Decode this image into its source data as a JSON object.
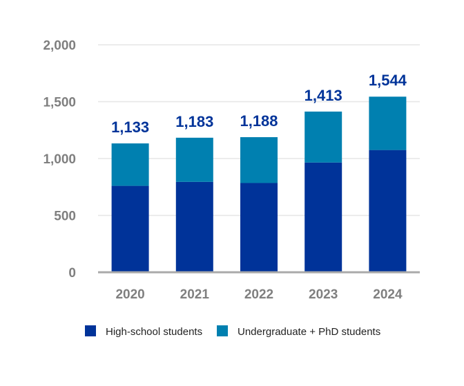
{
  "chart_data": {
    "type": "bar",
    "stacked": true,
    "categories": [
      "2020",
      "2021",
      "2022",
      "2023",
      "2024"
    ],
    "series": [
      {
        "name": "High-school students",
        "values": [
          760,
          795,
          785,
          965,
          1075
        ],
        "color": "#003399"
      },
      {
        "name": "Undergraduate + PhD students",
        "values": [
          373,
          388,
          403,
          448,
          469
        ],
        "color": "#0080b0"
      }
    ],
    "totals": [
      "1,133",
      "1,183",
      "1,188",
      "1,413",
      "1,544"
    ],
    "yticks": [
      "0",
      "500",
      "1,000",
      "1,500",
      "2,000"
    ],
    "ylim": [
      0,
      2000
    ],
    "grid": true,
    "legend": "bottom",
    "label_color": "#003399"
  }
}
